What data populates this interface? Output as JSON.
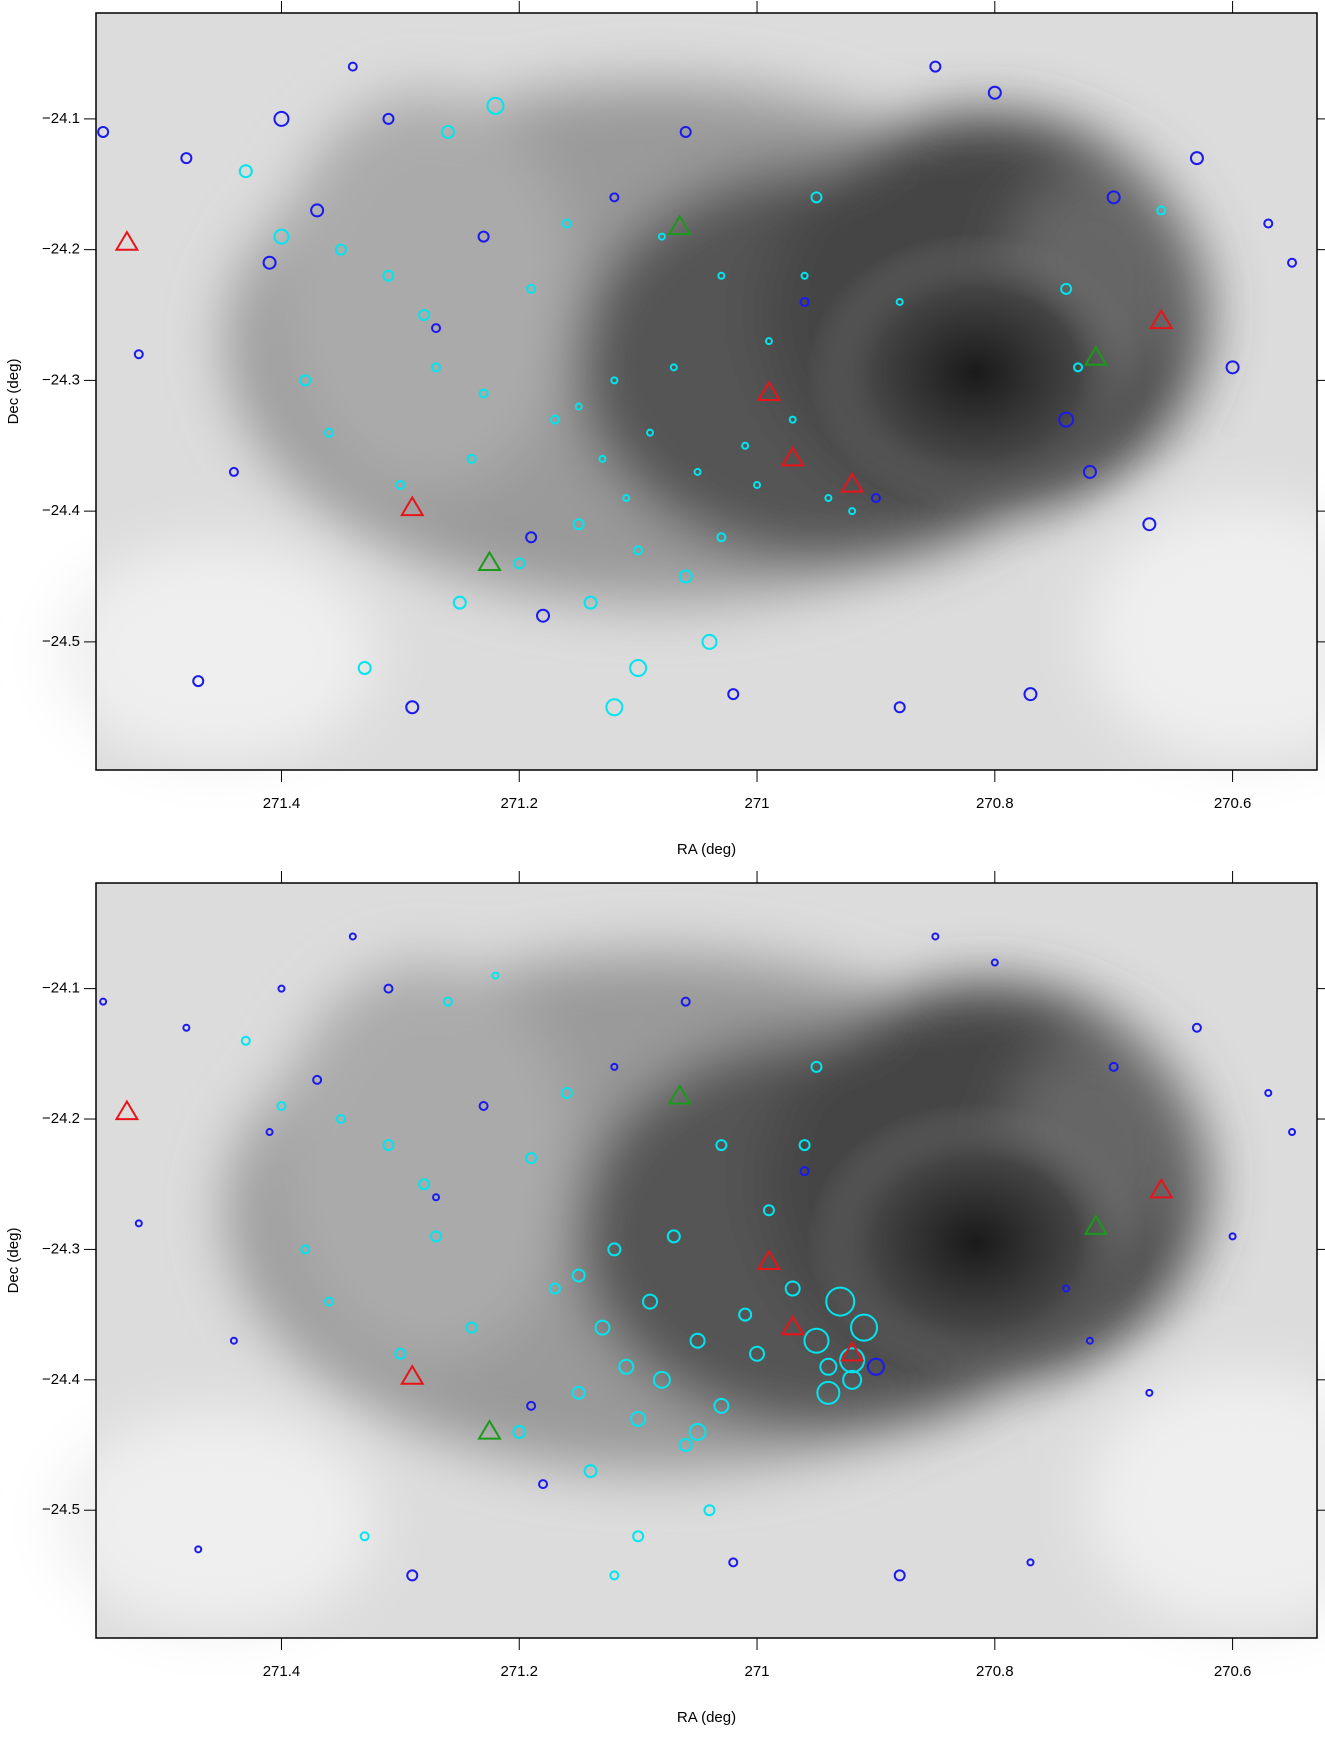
{
  "chart_data": [
    {
      "type": "scatter",
      "xlabel": "RA (deg)",
      "ylabel": "Dec (deg)",
      "xlim": [
        271.556,
        270.529
      ],
      "ylim": [
        -24.598,
        -24.019
      ],
      "xticks": [
        271.4,
        271.2,
        271,
        270.8,
        270.6
      ],
      "yticks": [
        {
          "value": -24.1,
          "label": "−24.1"
        },
        {
          "value": -24.2,
          "label": "−24.2"
        },
        {
          "value": -24.3,
          "label": "−24.3"
        },
        {
          "value": -24.4,
          "label": "−24.4"
        },
        {
          "value": -24.5,
          "label": "−24.5"
        }
      ],
      "series": [
        {
          "color": "#00e5ee",
          "marker": "circle",
          "x": [
            271.43,
            271.4,
            271.38,
            271.36,
            271.33,
            271.3,
            271.28,
            271.26,
            271.22,
            271.19,
            271.17,
            271.15,
            271.13,
            271.11,
            271.09,
            271.07,
            271.05,
            271.03,
            271.01,
            270.99,
            270.96,
            270.94,
            270.92,
            270.95,
            271.12,
            271.1,
            271.06,
            271.04,
            271.14,
            271.16,
            271.2,
            271.24,
            271.27,
            271.31,
            271.35,
            271.12,
            271.15,
            271.1,
            271.03,
            271.0,
            270.97,
            270.88,
            270.74,
            270.73,
            270.66,
            271.23,
            271.25,
            271.08
          ],
          "values": [
            -24.14,
            -24.19,
            -24.3,
            -24.34,
            -24.52,
            -24.38,
            -24.25,
            -24.11,
            -24.09,
            -24.23,
            -24.33,
            -24.41,
            -24.36,
            -24.39,
            -24.34,
            -24.29,
            -24.37,
            -24.42,
            -24.35,
            -24.27,
            -24.22,
            -24.39,
            -24.4,
            -24.16,
            -24.55,
            -24.52,
            -24.45,
            -24.5,
            -24.47,
            -24.18,
            -24.44,
            -24.36,
            -24.29,
            -24.22,
            -24.2,
            -24.3,
            -24.32,
            -24.43,
            -24.22,
            -24.38,
            -24.33,
            -24.24,
            -24.23,
            -24.29,
            -24.17,
            -24.31,
            -24.47,
            -24.19
          ],
          "sizes": [
            6,
            7,
            5,
            4,
            6,
            4,
            5,
            6,
            8,
            4,
            4,
            5,
            3,
            3,
            3,
            3,
            3,
            4,
            3,
            3,
            3,
            3,
            3,
            5,
            8,
            8,
            6,
            7,
            6,
            4,
            5,
            4,
            4,
            5,
            5,
            3,
            3,
            4,
            3,
            3,
            3,
            3,
            5,
            4,
            4,
            4,
            6,
            3
          ]
        },
        {
          "color": "#1a1aee",
          "marker": "circle",
          "x": [
            271.55,
            271.52,
            271.48,
            271.44,
            271.4,
            271.37,
            271.34,
            271.31,
            271.27,
            271.23,
            271.18,
            271.12,
            271.06,
            271.02,
            270.96,
            270.9,
            270.85,
            270.8,
            270.77,
            270.74,
            270.7,
            270.67,
            270.63,
            270.6,
            270.57,
            270.55,
            271.47,
            271.41,
            271.19,
            270.88,
            270.72,
            271.29
          ],
          "values": [
            -24.11,
            -24.28,
            -24.13,
            -24.37,
            -24.1,
            -24.17,
            -24.06,
            -24.1,
            -24.26,
            -24.19,
            -24.48,
            -24.16,
            -24.11,
            -24.54,
            -24.24,
            -24.39,
            -24.06,
            -24.08,
            -24.54,
            -24.33,
            -24.16,
            -24.41,
            -24.13,
            -24.29,
            -24.18,
            -24.21,
            -24.53,
            -24.21,
            -24.42,
            -24.55,
            -24.37,
            -24.55
          ],
          "sizes": [
            5,
            4,
            5,
            4,
            7,
            6,
            4,
            5,
            4,
            5,
            6,
            4,
            5,
            5,
            4,
            4,
            5,
            6,
            6,
            7,
            6,
            6,
            6,
            6,
            4,
            4,
            5,
            6,
            5,
            5,
            6,
            6
          ]
        },
        {
          "color": "#e8141a",
          "marker": "triangle",
          "size": 11,
          "x": [
            271.53,
            271.29,
            270.97,
            270.92,
            270.66,
            270.99
          ],
          "values": [
            -24.195,
            -24.398,
            -24.36,
            -24.38,
            -24.255,
            -24.31
          ]
        },
        {
          "color": "#1a9a1a",
          "marker": "triangle",
          "size": 11,
          "x": [
            271.065,
            270.715,
            271.225
          ],
          "values": [
            -24.183,
            -24.283,
            -24.44
          ]
        }
      ]
    },
    {
      "type": "scatter",
      "xlabel": "RA (deg)",
      "ylabel": "Dec (deg)",
      "xlim": [
        271.556,
        270.529
      ],
      "ylim": [
        -24.598,
        -24.019
      ],
      "xticks": [
        271.4,
        271.2,
        271,
        270.8,
        270.6
      ],
      "yticks": [
        {
          "value": -24.1,
          "label": "−24.1"
        },
        {
          "value": -24.2,
          "label": "−24.2"
        },
        {
          "value": -24.3,
          "label": "−24.3"
        },
        {
          "value": -24.4,
          "label": "−24.4"
        },
        {
          "value": -24.5,
          "label": "−24.5"
        }
      ],
      "series": [
        {
          "color": "#00e5ee",
          "marker": "circle",
          "x": [
            271.43,
            271.4,
            271.38,
            271.36,
            271.33,
            271.3,
            271.28,
            271.26,
            271.22,
            271.19,
            271.17,
            271.15,
            271.13,
            271.11,
            271.09,
            271.07,
            271.05,
            271.03,
            271.01,
            270.99,
            270.96,
            270.94,
            270.92,
            270.95,
            271.12,
            271.1,
            271.06,
            271.04,
            271.14,
            271.16,
            271.2,
            271.24,
            271.27,
            271.31,
            271.35,
            271.12,
            271.15,
            271.1,
            271.03,
            271.0,
            270.97,
            270.93,
            270.95,
            270.91,
            270.94,
            270.92,
            271.08,
            271.05
          ],
          "values": [
            -24.14,
            -24.19,
            -24.3,
            -24.34,
            -24.52,
            -24.38,
            -24.25,
            -24.11,
            -24.09,
            -24.23,
            -24.33,
            -24.41,
            -24.36,
            -24.39,
            -24.34,
            -24.29,
            -24.37,
            -24.42,
            -24.35,
            -24.27,
            -24.22,
            -24.39,
            -24.4,
            -24.16,
            -24.55,
            -24.52,
            -24.45,
            -24.5,
            -24.47,
            -24.18,
            -24.44,
            -24.36,
            -24.29,
            -24.22,
            -24.2,
            -24.3,
            -24.32,
            -24.43,
            -24.22,
            -24.38,
            -24.33,
            -24.34,
            -24.37,
            -24.36,
            -24.41,
            -24.385,
            -24.4,
            -24.44
          ],
          "sizes": [
            4,
            4,
            4,
            4,
            4,
            5,
            5,
            4,
            3,
            5,
            5,
            6,
            7,
            7,
            7,
            6,
            7,
            7,
            6,
            5,
            5,
            8,
            9,
            5,
            4,
            5,
            6,
            5,
            6,
            5,
            6,
            5,
            5,
            5,
            4,
            6,
            6,
            7,
            5,
            7,
            7,
            14,
            12,
            13,
            11,
            12,
            8,
            8
          ]
        },
        {
          "color": "#1a1aee",
          "marker": "circle",
          "x": [
            271.55,
            271.52,
            271.48,
            271.44,
            271.4,
            271.37,
            271.34,
            271.31,
            271.27,
            271.23,
            271.18,
            271.12,
            271.06,
            271.02,
            270.96,
            270.9,
            270.85,
            270.8,
            270.77,
            270.74,
            270.7,
            270.67,
            270.63,
            270.6,
            270.57,
            270.55,
            271.47,
            271.41,
            271.19,
            270.88,
            270.72,
            271.29
          ],
          "values": [
            -24.11,
            -24.28,
            -24.13,
            -24.37,
            -24.1,
            -24.17,
            -24.06,
            -24.1,
            -24.26,
            -24.19,
            -24.48,
            -24.16,
            -24.11,
            -24.54,
            -24.24,
            -24.39,
            -24.06,
            -24.08,
            -24.54,
            -24.33,
            -24.16,
            -24.41,
            -24.13,
            -24.29,
            -24.18,
            -24.21,
            -24.53,
            -24.21,
            -24.42,
            -24.55,
            -24.37,
            -24.55
          ],
          "sizes": [
            3,
            3,
            3,
            3,
            3,
            4,
            3,
            4,
            3,
            4,
            4,
            3,
            4,
            4,
            4,
            8,
            3,
            3,
            3,
            3,
            4,
            3,
            4,
            3,
            3,
            3,
            3,
            3,
            4,
            5,
            3,
            5
          ]
        },
        {
          "color": "#e8141a",
          "marker": "triangle",
          "size": 11,
          "x": [
            271.53,
            271.29,
            270.97,
            270.92,
            270.66,
            270.99
          ],
          "values": [
            -24.195,
            -24.398,
            -24.36,
            -24.38,
            -24.255,
            -24.31
          ]
        },
        {
          "color": "#1a9a1a",
          "marker": "triangle",
          "size": 11,
          "x": [
            271.065,
            270.715,
            271.225
          ],
          "values": [
            -24.183,
            -24.283,
            -24.44
          ]
        }
      ]
    }
  ]
}
